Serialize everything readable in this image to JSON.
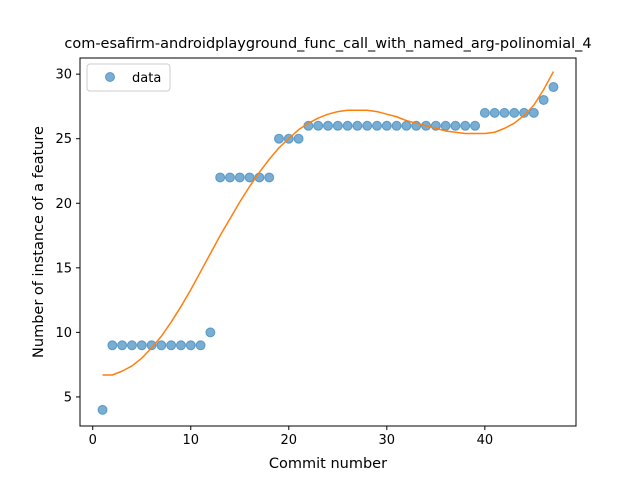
{
  "chart_data": {
    "type": "scatter",
    "title": "com-esafirm-androidplayground_func_call_with_named_arg-polinomial_4",
    "xlabel": "Commit number",
    "ylabel": "Number of instance of a feature",
    "xlim": [
      -1.3,
      49.3
    ],
    "ylim": [
      2.75,
      31.25
    ],
    "xticks": [
      0,
      10,
      20,
      30,
      40
    ],
    "yticks": [
      5,
      10,
      15,
      20,
      25,
      30
    ],
    "grid": false,
    "legend": {
      "position": "top-left",
      "entries": [
        "data"
      ]
    },
    "colors": {
      "data": "#1f77b4",
      "fit": "#ff7f0e"
    },
    "series": [
      {
        "name": "data",
        "kind": "scatter",
        "x": [
          1,
          2,
          3,
          4,
          5,
          6,
          7,
          8,
          9,
          10,
          11,
          12,
          13,
          14,
          15,
          16,
          17,
          18,
          19,
          20,
          21,
          22,
          23,
          24,
          25,
          26,
          27,
          28,
          29,
          30,
          31,
          32,
          33,
          34,
          35,
          36,
          37,
          38,
          39,
          40,
          41,
          42,
          43,
          44,
          45,
          46,
          47
        ],
        "y": [
          4,
          9,
          9,
          9,
          9,
          9,
          9,
          9,
          9,
          9,
          9,
          10,
          22,
          22,
          22,
          22,
          22,
          22,
          25,
          25,
          25,
          26,
          26,
          26,
          26,
          26,
          26,
          26,
          26,
          26,
          26,
          26,
          26,
          26,
          26,
          26,
          26,
          26,
          26,
          27,
          27,
          27,
          27,
          27,
          27,
          28,
          29
        ]
      },
      {
        "kind": "line",
        "x": [
          1,
          2,
          3,
          4,
          5,
          6,
          7,
          8,
          9,
          10,
          11,
          12,
          13,
          14,
          15,
          16,
          17,
          18,
          19,
          20,
          21,
          22,
          23,
          24,
          25,
          26,
          27,
          28,
          29,
          30,
          31,
          32,
          33,
          34,
          35,
          36,
          37,
          38,
          39,
          40,
          41,
          42,
          43,
          44,
          45,
          46,
          47
        ],
        "y": [
          6.7,
          6.7,
          7.0,
          7.4,
          8.0,
          8.8,
          9.7,
          10.8,
          12.0,
          13.3,
          14.7,
          16.1,
          17.5,
          18.8,
          20.1,
          21.3,
          22.4,
          23.4,
          24.3,
          25.0,
          25.7,
          26.2,
          26.6,
          26.9,
          27.1,
          27.2,
          27.2,
          27.2,
          27.1,
          26.9,
          26.7,
          26.4,
          26.2,
          26.0,
          25.8,
          25.6,
          25.5,
          25.4,
          25.4,
          25.4,
          25.5,
          25.8,
          26.2,
          26.8,
          27.6,
          28.8,
          30.2
        ]
      }
    ]
  }
}
